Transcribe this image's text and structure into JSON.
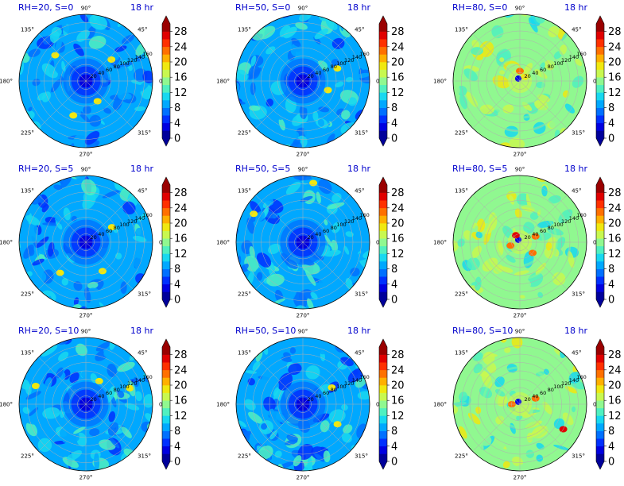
{
  "chart_data": [
    {
      "type": "heatmap",
      "subtype": "polar-filled-contour",
      "title": "RH=20, S=0",
      "time_label": "18 hr",
      "rh": 20,
      "s": 0,
      "has_center_low": true,
      "warm_spots": [
        [
          40,
          0.5,
          "yellow"
        ],
        [
          140,
          0.6,
          "yellow"
        ],
        [
          250,
          0.55,
          "yellow"
        ],
        [
          300,
          0.35,
          "yellow"
        ]
      ]
    },
    {
      "type": "heatmap",
      "subtype": "polar-filled-contour",
      "title": "RH=50, S=0",
      "time_label": "18 hr",
      "rh": 50,
      "s": 0,
      "has_center_low": true,
      "warm_spots": [
        [
          20,
          0.55,
          "yellow"
        ],
        [
          340,
          0.4,
          "yellow"
        ]
      ]
    },
    {
      "type": "heatmap",
      "subtype": "polar-filled-contour",
      "title": "RH=80, S=0",
      "time_label": "18 hr",
      "rh": 80,
      "s": 0,
      "has_center_low": false,
      "warm_spots": [
        [
          90,
          0.15,
          "orange"
        ],
        [
          40,
          0.1,
          "yellow"
        ]
      ]
    },
    {
      "type": "heatmap",
      "subtype": "polar-filled-contour",
      "title": "RH=20, S=5",
      "time_label": "18 hr",
      "rh": 20,
      "s": 5,
      "has_center_low": true,
      "warm_spots": [
        [
          30,
          0.45,
          "yellow"
        ],
        [
          230,
          0.6,
          "yellow"
        ],
        [
          300,
          0.5,
          "yellow"
        ]
      ]
    },
    {
      "type": "heatmap",
      "subtype": "polar-filled-contour",
      "title": "RH=50, S=5",
      "time_label": "18 hr",
      "rh": 50,
      "s": 5,
      "has_center_low": true,
      "warm_spots": [
        [
          80,
          0.9,
          "yellow"
        ],
        [
          150,
          0.85,
          "yellow"
        ]
      ]
    },
    {
      "type": "heatmap",
      "subtype": "polar-filled-contour",
      "title": "RH=80, S=5",
      "time_label": "18 hr",
      "rh": 80,
      "s": 5,
      "has_center_low": false,
      "warm_spots": [
        [
          120,
          0.12,
          "red"
        ],
        [
          200,
          0.15,
          "orange"
        ],
        [
          20,
          0.25,
          "orange"
        ],
        [
          320,
          0.25,
          "orange"
        ]
      ]
    },
    {
      "type": "heatmap",
      "subtype": "polar-filled-contour",
      "title": "RH=20, S=10",
      "time_label": "18 hr",
      "rh": 20,
      "s": 10,
      "has_center_low": true,
      "warm_spots": [
        [
          60,
          0.4,
          "yellow"
        ],
        [
          20,
          0.7,
          "yellow"
        ],
        [
          160,
          0.8,
          "yellow"
        ]
      ]
    },
    {
      "type": "heatmap",
      "subtype": "polar-filled-contour",
      "title": "RH=50, S=10",
      "time_label": "18 hr",
      "rh": 50,
      "s": 10,
      "has_center_low": true,
      "warm_spots": [
        [
          30,
          0.5,
          "yellow"
        ],
        [
          330,
          0.6,
          "yellow"
        ]
      ]
    },
    {
      "type": "heatmap",
      "subtype": "polar-filled-contour",
      "title": "RH=80, S=10",
      "time_label": "18 hr",
      "rh": 80,
      "s": 10,
      "has_center_low": false,
      "warm_spots": [
        [
          330,
          0.75,
          "red"
        ],
        [
          20,
          0.25,
          "orange"
        ],
        [
          180,
          0.12,
          "orange"
        ]
      ]
    }
  ],
  "angle_labels": [
    "0°",
    "45°",
    "90°",
    "135°",
    "180°",
    "225°",
    "270°",
    "315°"
  ],
  "radial_ticks": [
    "20",
    "40",
    "60",
    "80",
    "100",
    "120",
    "140",
    "160"
  ],
  "radial_tick_angle_deg": 22.5,
  "colorbar": {
    "ticks": [
      "0",
      "4",
      "8",
      "12",
      "16",
      "20",
      "24",
      "28"
    ],
    "levels": [
      0,
      2,
      4,
      6,
      8,
      10,
      12,
      14,
      16,
      18,
      20,
      22,
      24,
      26,
      28,
      30
    ],
    "colors": [
      "#00009a",
      "#0000e0",
      "#0030ff",
      "#0070ff",
      "#00a8ff",
      "#18d8f0",
      "#50f0c0",
      "#90f890",
      "#c8f850",
      "#f0e810",
      "#ffb000",
      "#ff7000",
      "#ff3000",
      "#e00000",
      "#9a0000"
    ],
    "extend": "both"
  },
  "colors": {
    "title": "#0000cc",
    "base_low_rh": "#00a8ff",
    "base_high_rh": "#90f890"
  }
}
